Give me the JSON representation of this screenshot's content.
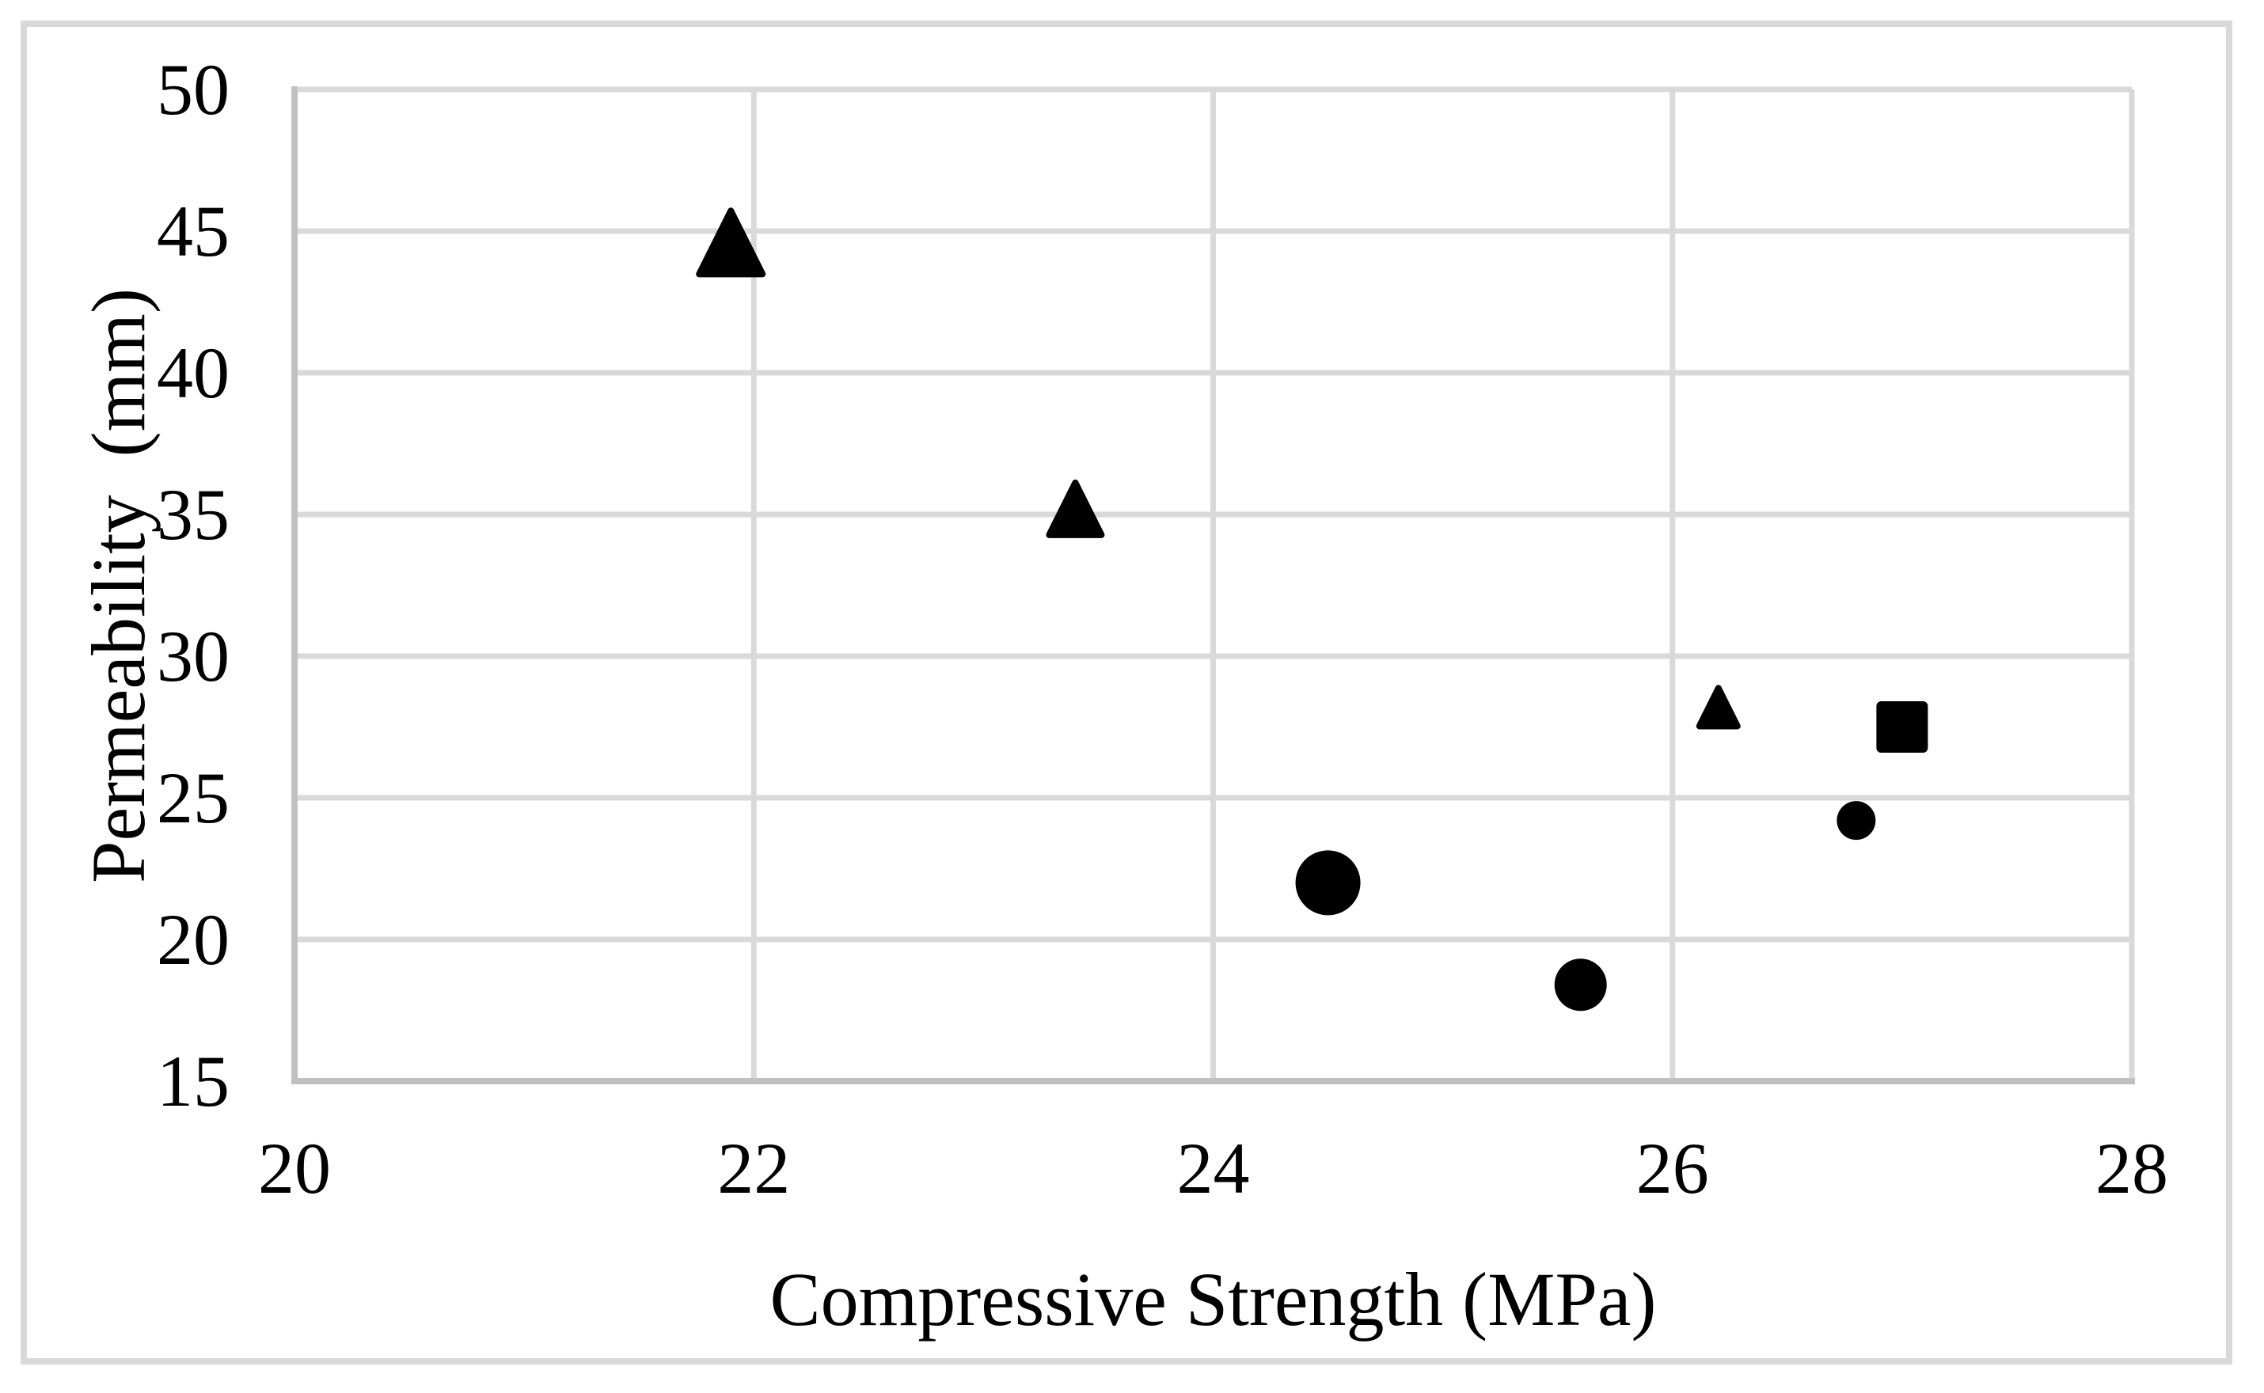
{
  "chart_data": {
    "type": "scatter",
    "title": "",
    "xlabel": "Compressive Strength (MPa)",
    "ylabel": "Permeability  (mm)",
    "xlim": [
      20,
      28
    ],
    "ylim": [
      15,
      50
    ],
    "xticks": [
      20,
      22,
      24,
      26,
      28
    ],
    "yticks": [
      15,
      20,
      25,
      30,
      35,
      40,
      45,
      50
    ],
    "grid": true,
    "legend": false,
    "marker_color": "#000000",
    "gridline_color": "#d9d9d9",
    "axis_line_color": "#c0c0c0",
    "frame_border_color": "#d9d9d9",
    "series": [
      {
        "name": "triangle-markers",
        "marker": "triangle",
        "points": [
          {
            "x": 21.9,
            "y": 44.6,
            "size": 80
          },
          {
            "x": 23.4,
            "y": 35.2,
            "size": 66
          },
          {
            "x": 26.2,
            "y": 28.2,
            "size": 48
          }
        ]
      },
      {
        "name": "circle-markers",
        "marker": "circle",
        "points": [
          {
            "x": 24.5,
            "y": 22.0,
            "size": 82
          },
          {
            "x": 25.6,
            "y": 18.4,
            "size": 66
          },
          {
            "x": 26.8,
            "y": 24.2,
            "size": 49
          }
        ]
      },
      {
        "name": "square-markers",
        "marker": "square",
        "points": [
          {
            "x": 27.0,
            "y": 27.5,
            "size": 65
          }
        ]
      }
    ]
  }
}
